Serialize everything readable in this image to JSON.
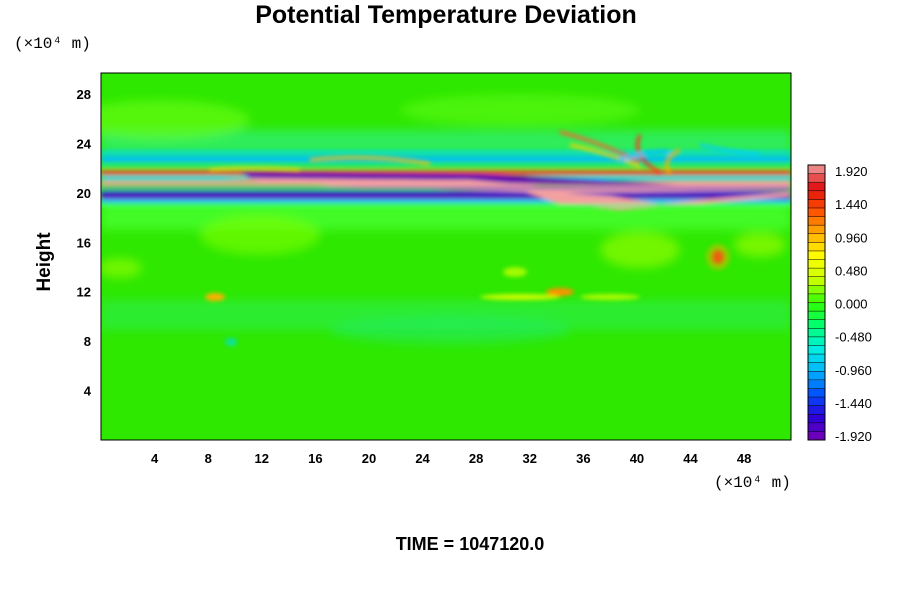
{
  "chart_data": {
    "type": "heatmap",
    "title": "Potential Temperature Deviation",
    "ylabel": "Height",
    "x_unit_label": "(×10⁴ m)",
    "y_unit_label": "(×10⁴ m)",
    "xlim": [
      0,
      51.5
    ],
    "ylim": [
      0,
      29.7
    ],
    "x_ticks": [
      4,
      8,
      12,
      16,
      20,
      24,
      28,
      32,
      36,
      40,
      44,
      48
    ],
    "y_ticks": [
      4,
      8,
      12,
      16,
      20,
      24,
      28
    ],
    "colorbar": {
      "min": -1.92,
      "max": 1.92,
      "tick_values": [
        1.92,
        1.44,
        0.96,
        0.48,
        0.0,
        -0.48,
        -0.96,
        -1.44,
        -1.92
      ],
      "tick_labels": [
        "1.920",
        "1.440",
        "0.960",
        "0.480",
        "0.000",
        "-0.480",
        "-0.960",
        "-1.440",
        "-1.920"
      ],
      "colormap": [
        "#7a00b4",
        "#2b00d6",
        "#0050ff",
        "#00b4ff",
        "#00f0e0",
        "#00ff70",
        "#30ff00",
        "#c8ff00",
        "#ffff00",
        "#ffb000",
        "#ff5000",
        "#e01010",
        "#f0a0a0"
      ]
    },
    "features": [
      {
        "description": "strong positive deviation band",
        "x_range": [
          19,
          51.5
        ],
        "y_center": 20.3,
        "value": 1.92
      },
      {
        "description": "strong negative deviation band",
        "x_range": [
          12,
          32
        ],
        "y_center": 21.2,
        "value": -1.92
      },
      {
        "description": "negative deviation layer",
        "x_range": [
          0,
          51.5
        ],
        "y_center": 19.8,
        "value": -1.6
      },
      {
        "description": "wave pattern above band",
        "x_range": [
          34,
          46
        ],
        "y_center": 23.0,
        "value": 0.9
      },
      {
        "description": "warm blob",
        "x_range": [
          45,
          47
        ],
        "y_center": 14.8,
        "value": 1.3
      },
      {
        "description": "weak positive patches",
        "x_range": [
          8,
          36
        ],
        "y_center": 11.7,
        "value": 0.7
      }
    ]
  },
  "footer": {
    "time_label": "TIME = 1047120.0"
  }
}
